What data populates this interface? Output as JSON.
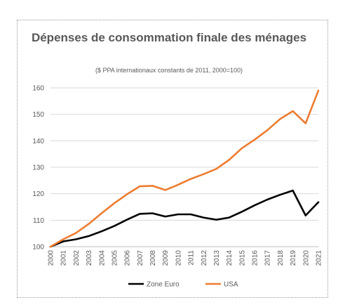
{
  "chart_data": {
    "type": "line",
    "title": "Dépenses de consommation finale des ménages",
    "subtitle": "($ PPA internationaux constants de 2011, 2000=100)",
    "x": [
      "2000",
      "2001",
      "2002",
      "2003",
      "2004",
      "2005",
      "2006",
      "2007",
      "2008",
      "2009",
      "2010",
      "2011",
      "2012",
      "2013",
      "2014",
      "2015",
      "2016",
      "2017",
      "2018",
      "2019",
      "2020",
      "2021"
    ],
    "ylim": [
      100,
      160
    ],
    "yticks": [
      100,
      110,
      120,
      130,
      140,
      150,
      160
    ],
    "grid": true,
    "legend_position": "bottom",
    "series": [
      {
        "name": "Zone Euro",
        "color": "#000000",
        "values": [
          100,
          102,
          102.8,
          104,
          105.8,
          107.8,
          110.2,
          112.4,
          112.6,
          111.4,
          112.2,
          112.2,
          111,
          110.2,
          111,
          113.2,
          115.6,
          117.8,
          119.6,
          121.2,
          111.8,
          116.8
        ]
      },
      {
        "name": "USA",
        "color": "#ED7D31",
        "values": [
          100,
          102.8,
          105.2,
          108.6,
          112.6,
          116.4,
          119.8,
          122.8,
          123,
          121.4,
          123.4,
          125.6,
          127.4,
          129.4,
          132.8,
          137.2,
          140.4,
          144,
          148.2,
          151.2,
          146.6,
          159
        ]
      }
    ]
  }
}
